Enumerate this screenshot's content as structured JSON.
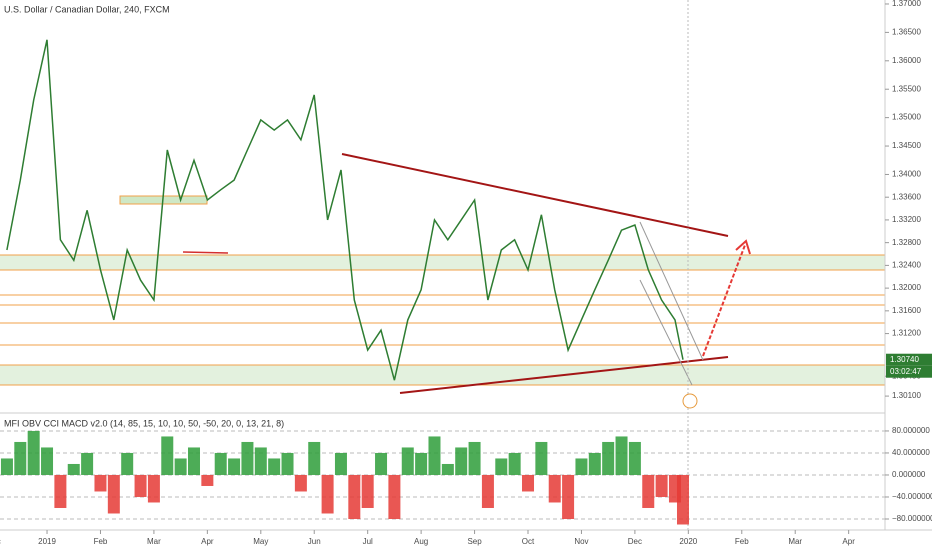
{
  "chart_data": [
    {
      "type": "line",
      "title": "U.S. Dollar / Canadian Dollar, 240, FXCM",
      "x": [
        0.25,
        0.5,
        0.75,
        1,
        1.25,
        1.5,
        1.75,
        2,
        2.25,
        2.5,
        2.75,
        3,
        3.25,
        3.5,
        3.75,
        4,
        4.25,
        4.5,
        4.75,
        5,
        5.25,
        5.5,
        5.75,
        6,
        6.25,
        6.5,
        6.75,
        7,
        7.25,
        7.5,
        7.75,
        8,
        8.25,
        8.5,
        8.75,
        9,
        9.25,
        9.5,
        9.75,
        10,
        10.25,
        10.5,
        10.75,
        11,
        11.25,
        11.5,
        11.75,
        12,
        12.25,
        12.5,
        12.75,
        12.9
      ],
      "series": [
        {
          "name": "USDCAD",
          "color": "#2e7d32",
          "values": [
            1.3267,
            1.339,
            1.3531,
            1.3637,
            1.3285,
            1.3249,
            1.3337,
            1.3232,
            1.3144,
            1.3267,
            1.3214,
            1.3179,
            1.3443,
            1.3355,
            1.3425,
            1.3355,
            1.3373,
            1.339,
            1.3443,
            1.3496,
            1.3478,
            1.3496,
            1.3461,
            1.354,
            1.332,
            1.3408,
            1.3179,
            1.3091,
            1.3126,
            1.3038,
            1.3144,
            1.3197,
            1.332,
            1.3285,
            1.332,
            1.3355,
            1.3179,
            1.3267,
            1.3285,
            1.3232,
            1.3329,
            1.3197,
            1.3091,
            1.3144,
            1.3197,
            1.3249,
            1.3302,
            1.3311,
            1.3232,
            1.3179,
            1.3144,
            1.3074
          ]
        }
      ],
      "xlim": [
        0.12,
        16.68
      ],
      "xticks": [
        {
          "value": 0,
          "label": "Dec"
        },
        {
          "value": 1,
          "label": "2019"
        },
        {
          "value": 2,
          "label": "Feb"
        },
        {
          "value": 3,
          "label": "Mar"
        },
        {
          "value": 4,
          "label": "Apr"
        },
        {
          "value": 5,
          "label": "May"
        },
        {
          "value": 6,
          "label": "Jun"
        },
        {
          "value": 7,
          "label": "Jul"
        },
        {
          "value": 8,
          "label": "Aug"
        },
        {
          "value": 9,
          "label": "Sep"
        },
        {
          "value": 10,
          "label": "Oct"
        },
        {
          "value": 11,
          "label": "Nov"
        },
        {
          "value": 12,
          "label": "Dec"
        },
        {
          "value": 13,
          "label": "2020"
        },
        {
          "value": 14,
          "label": "Feb"
        },
        {
          "value": 15,
          "label": "Mar"
        },
        {
          "value": 16,
          "label": "Apr"
        }
      ],
      "ylim": [
        1.2982,
        1.3707
      ],
      "yticks": [
        {
          "value": 1.37,
          "label": "1.37000"
        },
        {
          "value": 1.365,
          "label": "1.36500"
        },
        {
          "value": 1.36,
          "label": "1.36000"
        },
        {
          "value": 1.355,
          "label": "1.35500"
        },
        {
          "value": 1.35,
          "label": "1.35000"
        },
        {
          "value": 1.345,
          "label": "1.34500"
        },
        {
          "value": 1.34,
          "label": "1.34000"
        },
        {
          "value": 1.336,
          "label": "1.33600"
        },
        {
          "value": 1.332,
          "label": "1.33200"
        },
        {
          "value": 1.328,
          "label": "1.32800"
        },
        {
          "value": 1.324,
          "label": "1.32400"
        },
        {
          "value": 1.32,
          "label": "1.32000"
        },
        {
          "value": 1.316,
          "label": "1.31600"
        },
        {
          "value": 1.312,
          "label": "1.31200"
        },
        {
          "value": 1.3045,
          "label": "1.30450"
        },
        {
          "value": 1.301,
          "label": "1.30100"
        }
      ],
      "last_price_label": "1.30740",
      "countdown": "03:02:47"
    },
    {
      "type": "bar",
      "title": "MFI OBV CCI MACD v2.0 (14, 85, 15, 10, 10, 50, -50, 20, 0, 13, 21, 8)",
      "x": [
        0.25,
        0.5,
        0.75,
        1,
        1.25,
        1.5,
        1.75,
        2,
        2.25,
        2.5,
        2.75,
        3,
        3.25,
        3.5,
        3.75,
        4,
        4.25,
        4.5,
        4.75,
        5,
        5.25,
        5.5,
        5.75,
        6,
        6.25,
        6.5,
        6.75,
        7,
        7.25,
        7.5,
        7.75,
        8,
        8.25,
        8.5,
        8.75,
        9,
        9.25,
        9.5,
        9.75,
        10,
        10.25,
        10.5,
        10.75,
        11,
        11.25,
        11.5,
        11.75,
        12,
        12.25,
        12.5,
        12.75,
        12.9
      ],
      "values": [
        30,
        60,
        80,
        50,
        -60,
        20,
        40,
        -30,
        -70,
        40,
        -40,
        -50,
        70,
        30,
        50,
        -20,
        40,
        30,
        60,
        50,
        30,
        40,
        -30,
        60,
        -70,
        40,
        -80,
        -60,
        40,
        -80,
        50,
        40,
        70,
        20,
        50,
        60,
        -60,
        30,
        40,
        -30,
        60,
        -50,
        -80,
        30,
        40,
        60,
        70,
        60,
        -60,
        -40,
        -50,
        -90
      ],
      "positive_color": "#2e9e3a",
      "negative_color": "#e53935",
      "xlim": [
        0.12,
        16.68
      ],
      "ylim": [
        -100,
        109
      ],
      "yticks": [
        {
          "value": 80,
          "label": "80.000000"
        },
        {
          "value": 40,
          "label": "40.000000"
        },
        {
          "value": 0,
          "label": "0.000000"
        },
        {
          "value": -40,
          "label": "−40.000000"
        },
        {
          "value": -80,
          "label": "−80.000000"
        }
      ]
    }
  ]
}
